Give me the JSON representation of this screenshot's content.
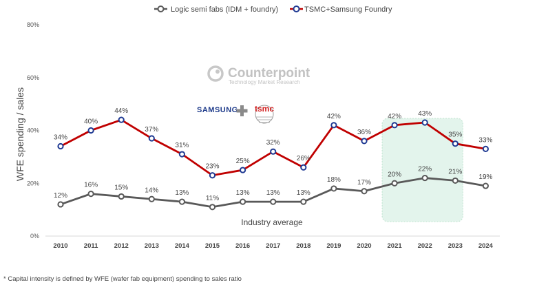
{
  "chart_data": {
    "type": "line",
    "title": "",
    "ylabel": "WFE spending / sales",
    "xlabel": "",
    "ylim": [
      0,
      80
    ],
    "yticks": [
      0,
      20,
      40,
      60,
      80
    ],
    "ytick_labels": [
      "0%",
      "20%",
      "40%",
      "60%",
      "80%"
    ],
    "grid": false,
    "legend_position": "top-center",
    "x": [
      "2010",
      "2011",
      "2012",
      "2013",
      "2014",
      "2015",
      "2016",
      "2017",
      "2018",
      "2019",
      "2020",
      "2021",
      "2022",
      "2023",
      "2024"
    ],
    "series": [
      {
        "name": "Logic semi fabs (IDM + foundry)",
        "color": "#595959",
        "values": [
          12,
          16,
          15,
          14,
          13,
          11,
          13,
          13,
          13,
          18,
          17,
          20,
          22,
          21,
          19
        ],
        "labels": [
          "12%",
          "16%",
          "15%",
          "14%",
          "13%",
          "11%",
          "13%",
          "13%",
          "13%",
          "18%",
          "17%",
          "20%",
          "22%",
          "21%",
          "19%"
        ]
      },
      {
        "name": "TSMC+Samsung Foundry",
        "color": "#c00000",
        "marker_color": "#1f3a93",
        "values": [
          34,
          40,
          44,
          37,
          31,
          23,
          25,
          32,
          26,
          42,
          36,
          42,
          43,
          35,
          33
        ],
        "labels": [
          "34%",
          "40%",
          "44%",
          "37%",
          "31%",
          "23%",
          "25%",
          "32%",
          "26%",
          "42%",
          "36%",
          "42%",
          "43%",
          "35%",
          "33%"
        ]
      }
    ],
    "highlight": {
      "from": "2021",
      "to": "2023",
      "color": "#e3f4ec"
    },
    "annotations": [
      "Industry average"
    ],
    "footnote": "* Capital intensity is defined by WFE (wafer fab equipment) spending to sales ratio",
    "logos": {
      "brand_name": "Counterpoint",
      "brand_tagline": "Technology Market Research",
      "company_a": "SAMSUNG",
      "company_b": "tsmc"
    }
  }
}
